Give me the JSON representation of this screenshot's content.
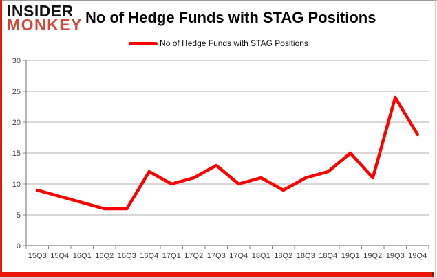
{
  "header": {
    "logo_line1": "INSIDER",
    "logo_line2": "MONKEY",
    "title": "No of Hedge Funds with STAG Positions"
  },
  "legend": {
    "label": "No of Hedge Funds with STAG Positions"
  },
  "colors": {
    "line_red": "#ff0000",
    "logo_black": "#111111",
    "logo_red": "#d0493a",
    "frame_red": "#ec1709",
    "frame_red_dark": "#8e140a",
    "frame_pink": "#f3beb5",
    "frame_gray": "#9a9a9a",
    "gridline": "#b2b2b2",
    "axis": "#858585",
    "tick_label": "#3f3f3f"
  },
  "chart_data": {
    "type": "line",
    "title": "No of Hedge Funds with STAG Positions",
    "categories": [
      "15Q3",
      "15Q4",
      "16Q1",
      "16Q2",
      "16Q3",
      "16Q4",
      "17Q1",
      "17Q2",
      "17Q3",
      "17Q4",
      "18Q1",
      "18Q2",
      "18Q3",
      "18Q4",
      "19Q1",
      "19Q2",
      "19Q3",
      "19Q4"
    ],
    "series": [
      {
        "name": "No of Hedge Funds with STAG Positions",
        "color": "#ff0000",
        "values": [
          9,
          8,
          7,
          6,
          6,
          12,
          10,
          11,
          13,
          10,
          11,
          9,
          11,
          12,
          15,
          11,
          24,
          18
        ]
      }
    ],
    "xlabel": "",
    "ylabel": "",
    "ylim": [
      0,
      30
    ],
    "ytick_step": 5,
    "grid": true,
    "legend_position": "top-center"
  }
}
